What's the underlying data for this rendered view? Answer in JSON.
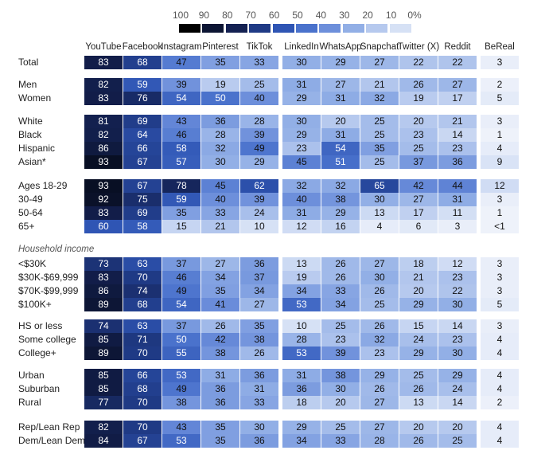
{
  "legend": {
    "labels": [
      "100",
      "90",
      "80",
      "70",
      "60",
      "50",
      "40",
      "30",
      "20",
      "10",
      "0%"
    ],
    "colors": [
      "#000000",
      "#0c1533",
      "#142152",
      "#1f3a85",
      "#2f55b4",
      "#4a72cc",
      "#6d8fdb",
      "#92afe6",
      "#b6c9ee",
      "#d6e1f5",
      "#f1f4fb"
    ]
  },
  "chart_data": {
    "type": "heatmap",
    "title": "",
    "xlabel": "",
    "ylabel": "",
    "value_range": [
      0,
      100
    ],
    "columns": [
      "YouTube",
      "Facebook",
      "Instagram",
      "Pinterest",
      "TikTok",
      "LinkedIn",
      "WhatsApp",
      "Snapchat",
      "Twitter (X)",
      "Reddit",
      "BeReal"
    ],
    "groups": [
      {
        "label": "",
        "rows": [
          {
            "label": "Total",
            "values": [
              "83",
              "68",
              "47",
              "35",
              "33",
              "30",
              "29",
              "27",
              "22",
              "22",
              "3"
            ]
          }
        ]
      },
      {
        "label": "",
        "rows": [
          {
            "label": "Men",
            "values": [
              "82",
              "59",
              "39",
              "19",
              "25",
              "31",
              "27",
              "21",
              "26",
              "27",
              "2"
            ]
          },
          {
            "label": "Women",
            "values": [
              "83",
              "76",
              "54",
              "50",
              "40",
              "29",
              "31",
              "32",
              "19",
              "17",
              "5"
            ]
          }
        ]
      },
      {
        "label": "",
        "rows": [
          {
            "label": "White",
            "values": [
              "81",
              "69",
              "43",
              "36",
              "28",
              "30",
              "20",
              "25",
              "20",
              "21",
              "3"
            ]
          },
          {
            "label": "Black",
            "values": [
              "82",
              "64",
              "46",
              "28",
              "39",
              "29",
              "31",
              "25",
              "23",
              "14",
              "1"
            ]
          },
          {
            "label": "Hispanic",
            "values": [
              "86",
              "66",
              "58",
              "32",
              "49",
              "23",
              "54",
              "35",
              "25",
              "23",
              "4"
            ]
          },
          {
            "label": "Asian*",
            "values": [
              "93",
              "67",
              "57",
              "30",
              "29",
              "45",
              "51",
              "25",
              "37",
              "36",
              "9"
            ]
          }
        ]
      },
      {
        "label": "",
        "rows": [
          {
            "label": "Ages 18-29",
            "values": [
              "93",
              "67",
              "78",
              "45",
              "62",
              "32",
              "32",
              "65",
              "42",
              "44",
              "12"
            ]
          },
          {
            "label": "30-49",
            "values": [
              "92",
              "75",
              "59",
              "40",
              "39",
              "40",
              "38",
              "30",
              "27",
              "31",
              "3"
            ]
          },
          {
            "label": "50-64",
            "values": [
              "83",
              "69",
              "35",
              "33",
              "24",
              "31",
              "29",
              "13",
              "17",
              "11",
              "1"
            ]
          },
          {
            "label": "65+",
            "values": [
              "60",
              "58",
              "15",
              "21",
              "10",
              "12",
              "16",
              "4",
              "6",
              "3",
              "<1"
            ]
          }
        ]
      },
      {
        "label": "Household income",
        "rows": [
          {
            "label": "<$30K",
            "values": [
              "73",
              "63",
              "37",
              "27",
              "36",
              "13",
              "26",
              "27",
              "18",
              "12",
              "3"
            ]
          },
          {
            "label": "$30K-$69,999",
            "values": [
              "83",
              "70",
              "46",
              "34",
              "37",
              "19",
              "26",
              "30",
              "21",
              "23",
              "3"
            ]
          },
          {
            "label": "$70K-$99,999",
            "values": [
              "86",
              "74",
              "49",
              "35",
              "34",
              "34",
              "33",
              "26",
              "20",
              "22",
              "3"
            ]
          },
          {
            "label": "$100K+",
            "values": [
              "89",
              "68",
              "54",
              "41",
              "27",
              "53",
              "34",
              "25",
              "29",
              "30",
              "5"
            ]
          }
        ]
      },
      {
        "label": "",
        "rows": [
          {
            "label": "HS or less",
            "values": [
              "74",
              "63",
              "37",
              "26",
              "35",
              "10",
              "25",
              "26",
              "15",
              "14",
              "3"
            ]
          },
          {
            "label": "Some college",
            "values": [
              "85",
              "71",
              "50",
              "42",
              "38",
              "28",
              "23",
              "32",
              "24",
              "23",
              "4"
            ]
          },
          {
            "label": "College+",
            "values": [
              "89",
              "70",
              "55",
              "38",
              "26",
              "53",
              "39",
              "23",
              "29",
              "30",
              "4"
            ]
          }
        ]
      },
      {
        "label": "",
        "rows": [
          {
            "label": "Urban",
            "values": [
              "85",
              "66",
              "53",
              "31",
              "36",
              "31",
              "38",
              "29",
              "25",
              "29",
              "4"
            ]
          },
          {
            "label": "Suburban",
            "values": [
              "85",
              "68",
              "49",
              "36",
              "31",
              "36",
              "30",
              "26",
              "26",
              "24",
              "4"
            ]
          },
          {
            "label": "Rural",
            "values": [
              "77",
              "70",
              "38",
              "36",
              "33",
              "18",
              "20",
              "27",
              "13",
              "14",
              "2"
            ]
          }
        ]
      },
      {
        "label": "",
        "rows": [
          {
            "label": "Rep/Lean Rep",
            "values": [
              "82",
              "70",
              "43",
              "35",
              "30",
              "29",
              "25",
              "27",
              "20",
              "20",
              "4"
            ]
          },
          {
            "label": "Dem/Lean Dem",
            "values": [
              "84",
              "67",
              "53",
              "35",
              "36",
              "34",
              "33",
              "28",
              "26",
              "25",
              "4"
            ]
          }
        ]
      }
    ]
  }
}
